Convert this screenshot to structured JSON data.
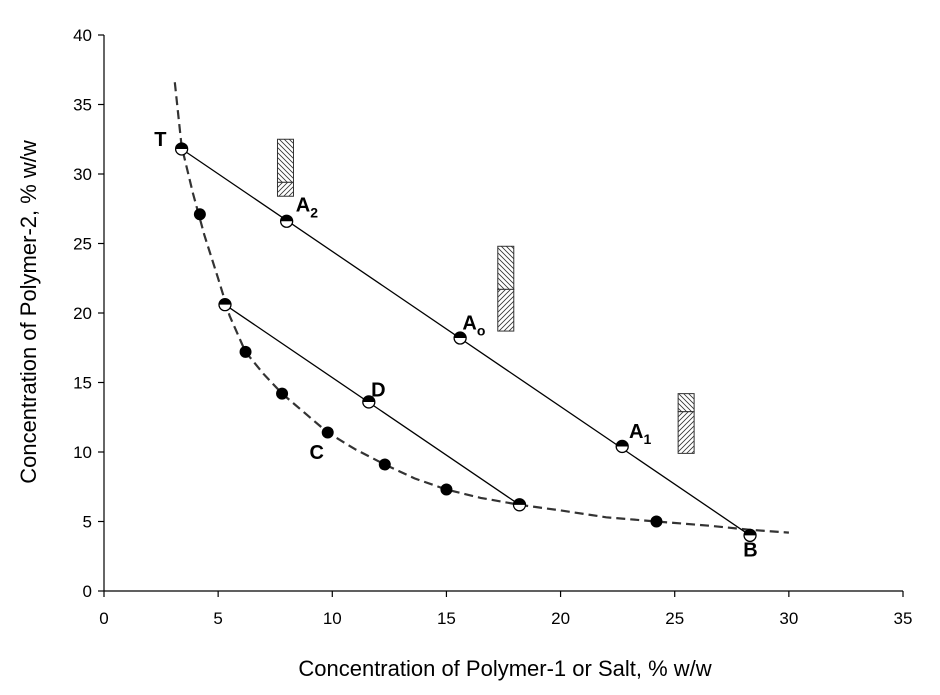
{
  "chart_data": {
    "type": "scatter",
    "title": "",
    "xlabel": "Concentration of Polymer-1 or Salt, % w/w",
    "ylabel": "Concentration of Polymer-2, % w/w",
    "xlim": [
      0,
      35
    ],
    "ylim": [
      0,
      40
    ],
    "xticks": [
      0,
      5,
      10,
      15,
      20,
      25,
      30,
      35
    ],
    "yticks": [
      0,
      5,
      10,
      15,
      20,
      25,
      30,
      35,
      40
    ],
    "grid": false,
    "binodal_curve": [
      [
        3.1,
        36.6
      ],
      [
        3.4,
        32.0
      ],
      [
        3.9,
        28.6
      ],
      [
        4.4,
        25.6
      ],
      [
        5.0,
        22.5
      ],
      [
        5.5,
        19.8
      ],
      [
        6.2,
        17.2
      ],
      [
        7.0,
        15.6
      ],
      [
        7.8,
        14.2
      ],
      [
        8.8,
        12.8
      ],
      [
        9.8,
        11.4
      ],
      [
        11.0,
        10.2
      ],
      [
        12.3,
        9.1
      ],
      [
        13.6,
        8.1
      ],
      [
        15.0,
        7.3
      ],
      [
        16.5,
        6.7
      ],
      [
        18.2,
        6.2
      ],
      [
        20.0,
        5.8
      ],
      [
        22.0,
        5.3
      ],
      [
        24.2,
        5.0
      ],
      [
        26.5,
        4.7
      ],
      [
        28.3,
        4.4
      ],
      [
        30.0,
        4.2
      ]
    ],
    "experimental_points": [
      {
        "x": 4.2,
        "y": 27.1
      },
      {
        "x": 6.2,
        "y": 17.2
      },
      {
        "x": 7.8,
        "y": 14.2
      },
      {
        "x": 9.8,
        "y": 11.4
      },
      {
        "x": 12.3,
        "y": 9.1
      },
      {
        "x": 15.0,
        "y": 7.3
      },
      {
        "x": 24.2,
        "y": 5.0
      }
    ],
    "half_filled_points": [
      {
        "x": 3.4,
        "y": 31.8
      },
      {
        "x": 8.0,
        "y": 26.6
      },
      {
        "x": 15.6,
        "y": 18.2
      },
      {
        "x": 22.7,
        "y": 10.4
      },
      {
        "x": 28.3,
        "y": 4.0
      },
      {
        "x": 5.3,
        "y": 20.6
      },
      {
        "x": 11.6,
        "y": 13.6
      },
      {
        "x": 18.2,
        "y": 6.2
      }
    ],
    "tie_lines": [
      {
        "from": [
          3.4,
          31.8
        ],
        "to": [
          28.3,
          4.0
        ]
      },
      {
        "from": [
          5.3,
          20.6
        ],
        "to": [
          18.2,
          6.2
        ]
      }
    ],
    "point_labels": [
      {
        "text": "T",
        "x": 2.2,
        "y": 32.0
      },
      {
        "text": "A",
        "sub": "2",
        "x": 8.4,
        "y": 27.3
      },
      {
        "text": "A",
        "sub": "o",
        "x": 15.7,
        "y": 18.8
      },
      {
        "text": "A",
        "sub": "1",
        "x": 23.0,
        "y": 11.0
      },
      {
        "text": "B",
        "x": 28.0,
        "y": 2.5
      },
      {
        "text": "D",
        "x": 11.7,
        "y": 14.0
      },
      {
        "text": "C",
        "x": 9.0,
        "y": 9.5
      }
    ],
    "phase_bars": [
      {
        "x": 7.95,
        "top": 32.5,
        "boundary": 29.4,
        "bottom": 28.4
      },
      {
        "x": 17.6,
        "top": 24.8,
        "boundary": 21.7,
        "bottom": 18.7
      },
      {
        "x": 25.5,
        "top": 14.2,
        "boundary": 12.9,
        "bottom": 9.9
      }
    ]
  }
}
